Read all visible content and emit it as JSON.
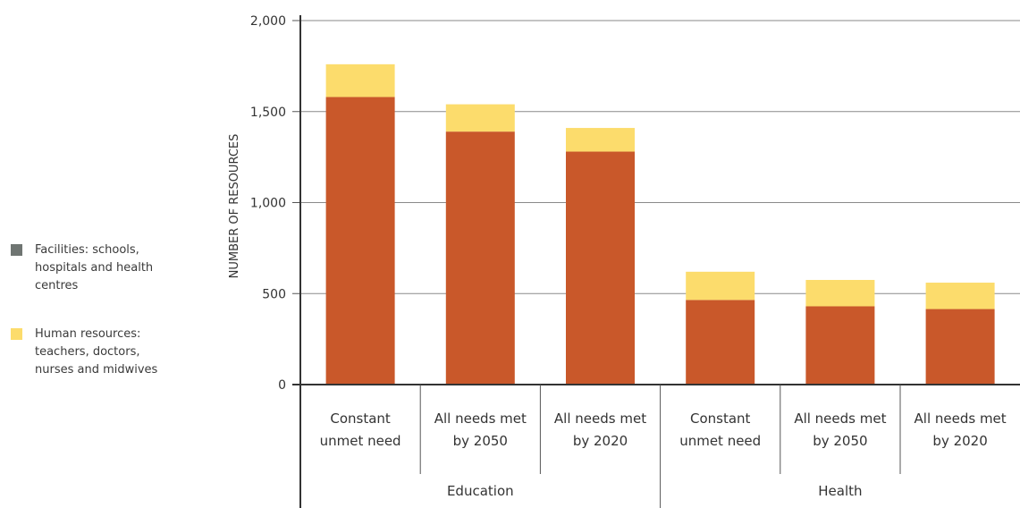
{
  "chart_data": {
    "type": "bar",
    "stacked": true,
    "ylabel": "NUMBER OF RESOURCES",
    "ylim": [
      0,
      2000
    ],
    "yticks": [
      0,
      500,
      1000,
      1500,
      2000
    ],
    "ytick_labels": [
      "0",
      "500",
      "1,000",
      "1,500",
      "2,000"
    ],
    "groups": [
      "Education",
      "Health"
    ],
    "categories": [
      [
        "Constant",
        "unmet need"
      ],
      [
        "All needs met",
        "by 2050"
      ],
      [
        "All needs met",
        "by 2020"
      ],
      [
        "Constant",
        "unmet need"
      ],
      [
        "All needs met",
        "by 2050"
      ],
      [
        "All needs met",
        "by 2020"
      ]
    ],
    "category_group": [
      0,
      0,
      0,
      1,
      1,
      1
    ],
    "grid": true,
    "legend_position": "left",
    "series": [
      {
        "name": "Facilities: schools, hospitals and health centres",
        "legend_lines": [
          "Facilities: schools,",
          "hospitals and health",
          "centres"
        ],
        "legend_color": "#6f7572",
        "color": "#c9582a",
        "values": [
          1580,
          1390,
          1280,
          465,
          430,
          415
        ]
      },
      {
        "name": "Human resources: teachers, doctors, nurses and midwives",
        "legend_lines": [
          "Human resources:",
          "teachers, doctors,",
          "nurses and midwives"
        ],
        "legend_color": "#fcdc6c",
        "color": "#fcdc6c",
        "values": [
          180,
          150,
          130,
          155,
          145,
          145
        ]
      }
    ]
  }
}
